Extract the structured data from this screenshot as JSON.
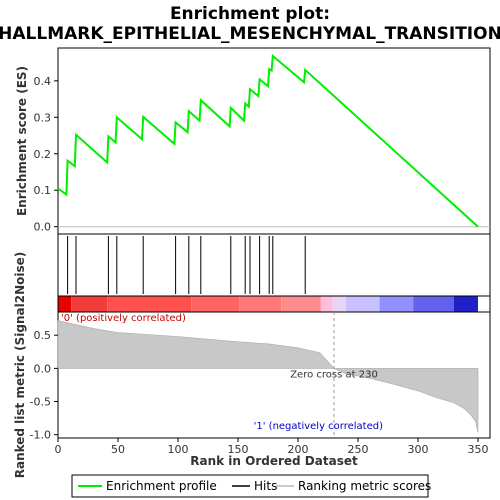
{
  "chart_data": {
    "type": "line",
    "title_line1": "Enrichment plot:",
    "title_line2": "HALLMARK_EPITHELIAL_MESENCHYMAL_TRANSITION",
    "xlabel": "Rank in Ordered Dataset",
    "es_ylabel": "Enrichment score (ES)",
    "metric_ylabel": "Ranked list metric (Signal2Noise)",
    "x_range": [
      0,
      360
    ],
    "x_ticks": [
      0,
      50,
      100,
      150,
      200,
      250,
      300,
      350
    ],
    "es_range": [
      -0.02,
      0.49
    ],
    "es_ticks": [
      0.0,
      0.1,
      0.2,
      0.3,
      0.4
    ],
    "metric_range": [
      -1.05,
      0.85
    ],
    "metric_ticks": [
      0.5,
      0.0,
      -0.5,
      -1.0
    ],
    "n_genes": 350,
    "hits": [
      8,
      15,
      42,
      49,
      71,
      98,
      109,
      119,
      144,
      156,
      160,
      168,
      176,
      179,
      206
    ],
    "es_points": [
      [
        0,
        0.105
      ],
      [
        7,
        0.088
      ],
      [
        8,
        0.181
      ],
      [
        14,
        0.166
      ],
      [
        15,
        0.252
      ],
      [
        41,
        0.176
      ],
      [
        42,
        0.248
      ],
      [
        48,
        0.231
      ],
      [
        49,
        0.3
      ],
      [
        70,
        0.24
      ],
      [
        71,
        0.301
      ],
      [
        97,
        0.227
      ],
      [
        98,
        0.286
      ],
      [
        108,
        0.259
      ],
      [
        109,
        0.317
      ],
      [
        118,
        0.291
      ],
      [
        119,
        0.347
      ],
      [
        143,
        0.275
      ],
      [
        144,
        0.326
      ],
      [
        155,
        0.291
      ],
      [
        156,
        0.338
      ],
      [
        159,
        0.329
      ],
      [
        160,
        0.377
      ],
      [
        167,
        0.358
      ],
      [
        168,
        0.404
      ],
      [
        175,
        0.385
      ],
      [
        176,
        0.432
      ],
      [
        178,
        0.428
      ],
      [
        179,
        0.468
      ],
      [
        205,
        0.396
      ],
      [
        206,
        0.43
      ],
      [
        350,
        0.0
      ]
    ],
    "metric_points": [
      [
        0,
        0.72
      ],
      [
        5,
        0.7
      ],
      [
        10,
        0.68
      ],
      [
        20,
        0.64
      ],
      [
        30,
        0.6
      ],
      [
        50,
        0.54
      ],
      [
        75,
        0.51
      ],
      [
        100,
        0.48
      ],
      [
        125,
        0.44
      ],
      [
        150,
        0.4
      ],
      [
        175,
        0.37
      ],
      [
        200,
        0.31
      ],
      [
        210,
        0.27
      ],
      [
        218,
        0.24
      ],
      [
        222,
        0.16
      ],
      [
        226,
        0.08
      ],
      [
        230,
        0.0
      ],
      [
        240,
        -0.08
      ],
      [
        260,
        -0.15
      ],
      [
        280,
        -0.24
      ],
      [
        300,
        -0.34
      ],
      [
        315,
        -0.44
      ],
      [
        330,
        -0.52
      ],
      [
        338,
        -0.6
      ],
      [
        344,
        -0.7
      ],
      [
        348,
        -0.8
      ],
      [
        350,
        -0.97
      ]
    ],
    "zero_cross": 230,
    "zero_cross_label": "Zero cross at 230",
    "pos_label": "'0' (positively correlated)",
    "neg_label": "'1' (negatively correlated)",
    "heat_segments": [
      {
        "start": 0,
        "end": 11,
        "color": "#e60000"
      },
      {
        "start": 11,
        "end": 41,
        "color": "#f23c3c"
      },
      {
        "start": 41,
        "end": 111,
        "color": "#ff5050"
      },
      {
        "start": 111,
        "end": 151,
        "color": "#ff6464"
      },
      {
        "start": 151,
        "end": 186,
        "color": "#ff7878"
      },
      {
        "start": 186,
        "end": 219,
        "color": "#ff8c8c"
      },
      {
        "start": 219,
        "end": 229,
        "color": "#ffbcdc"
      },
      {
        "start": 229,
        "end": 240,
        "color": "#e6d6f6"
      },
      {
        "start": 240,
        "end": 268,
        "color": "#c8c0ff"
      },
      {
        "start": 268,
        "end": 296,
        "color": "#9090ff"
      },
      {
        "start": 296,
        "end": 330,
        "color": "#6262ee"
      },
      {
        "start": 330,
        "end": 350,
        "color": "#2020c8"
      }
    ],
    "legend": [
      {
        "label": "Enrichment profile",
        "color": "#00ee00"
      },
      {
        "label": "Hits",
        "color": "#000000"
      },
      {
        "label": "Ranking metric scores",
        "color": "#bbbbbb"
      }
    ]
  }
}
